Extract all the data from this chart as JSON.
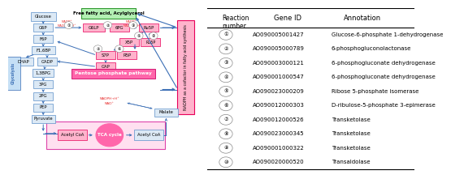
{
  "table": {
    "reaction_numbers": [
      "①",
      "②",
      "③",
      "④",
      "⑤",
      "⑥",
      "⑦",
      "⑧",
      "⑨",
      "⑩"
    ],
    "gene_ids": [
      "AO090005001427",
      "AO090005000789",
      "AO090003000121",
      "AO090001000547",
      "AO090023000209",
      "AO090012000303",
      "AO090012000526",
      "AO090023000345",
      "AO090001000322",
      "AO090020000520"
    ],
    "annotations": [
      "Glucose-6-phosphate 1-dehydrogenase",
      "6-phosphogluconolactonase",
      "6-phosphogluconate dehydrogenase",
      "6-phosphogluconate dehydrogenase",
      "Ribose 5-phosphate isomerase",
      "D-ribulose-5-phosphate 3-epimerase",
      "Transketolase",
      "Transketolase",
      "Transketolase",
      "Transaldolase"
    ]
  }
}
